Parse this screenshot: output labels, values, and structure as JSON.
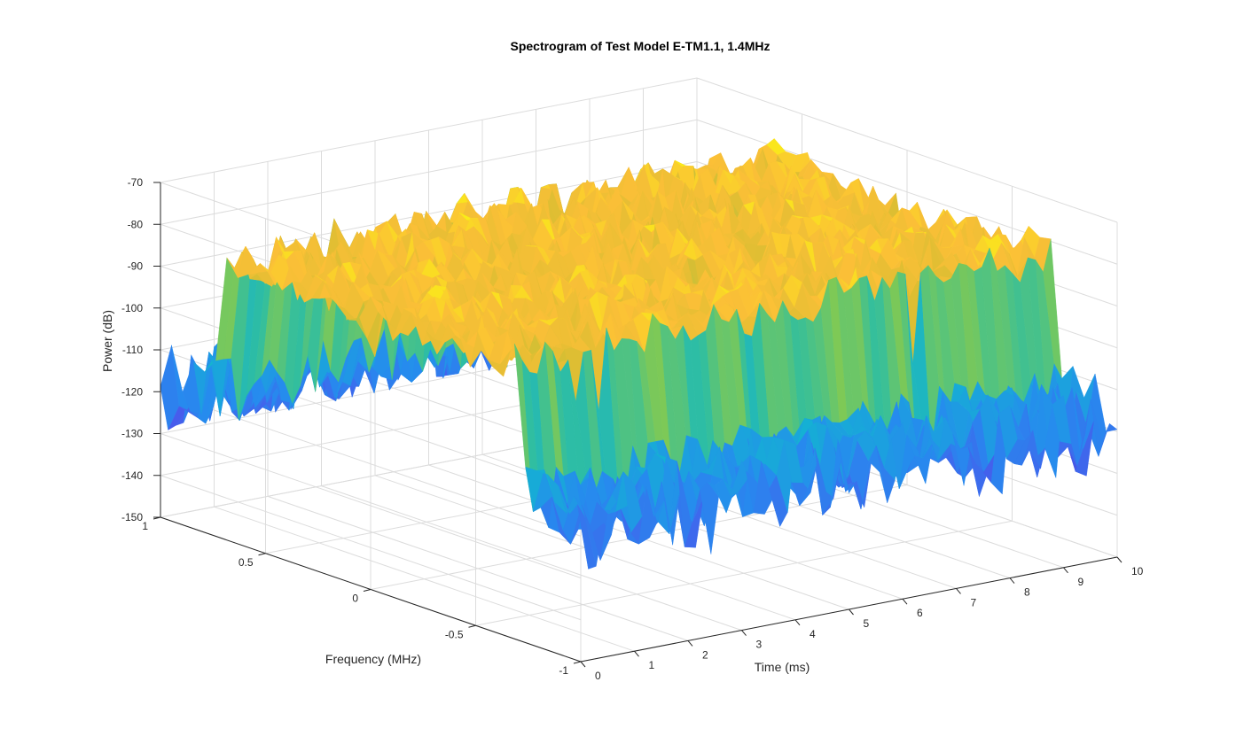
{
  "chart_data": {
    "type": "surface",
    "title": "Spectrogram of Test Model E-TM1.1, 1.4MHz",
    "xlabel": "Time (ms)",
    "ylabel": "Frequency (MHz)",
    "zlabel": "Power (dB)",
    "xlim": [
      0,
      10
    ],
    "ylim": [
      -1,
      1
    ],
    "zlim": [
      -150,
      -70
    ],
    "x_ticks": [
      "0",
      "1",
      "2",
      "3",
      "4",
      "5",
      "6",
      "7",
      "8",
      "9",
      "10"
    ],
    "y_ticks": [
      "-1",
      "-0.5",
      "0",
      "0.5",
      "1"
    ],
    "z_ticks": [
      "-150",
      "-140",
      "-130",
      "-120",
      "-110",
      "-100",
      "-90",
      "-80",
      "-70"
    ],
    "grid": true,
    "colormap": "parula",
    "colors": {
      "low": "#3e26a8",
      "mid": "#2eb7a0",
      "high": "#fad22e"
    },
    "surface_summary": {
      "occupied_band_mhz": [
        -0.7,
        0.7
      ],
      "in_band_power_db": [
        -95,
        -78
      ],
      "out_of_band_power_db": [
        -145,
        -108
      ]
    }
  }
}
